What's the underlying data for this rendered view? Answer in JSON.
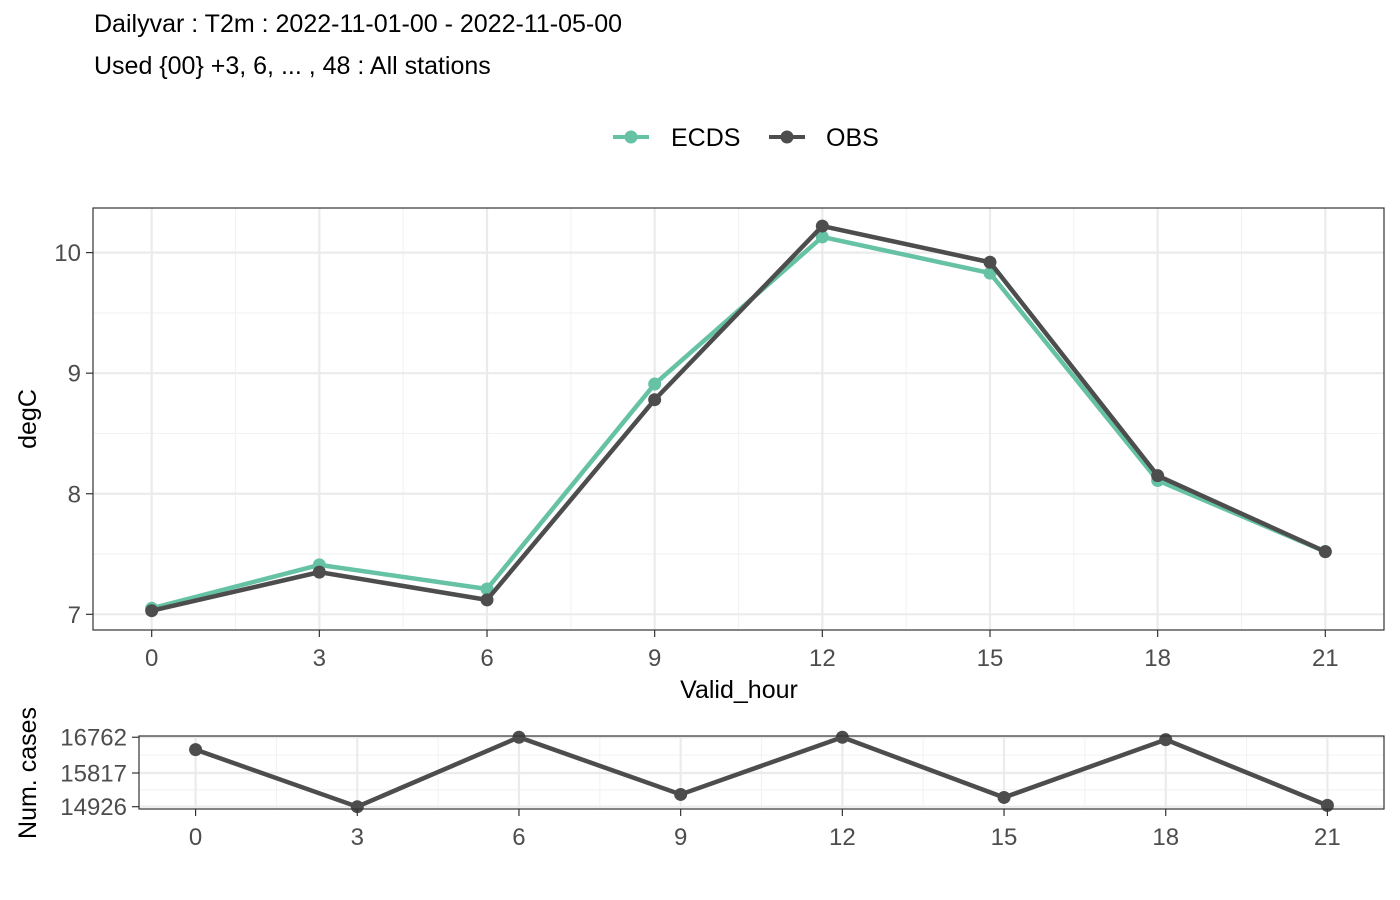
{
  "title": "Dailyvar : T2m : 2022-11-01-00 - 2022-11-05-00",
  "subtitle": "Used {00} +3, 6, ... , 48 : All stations",
  "colors": {
    "ecds": "#66c2a5",
    "obs": "#4d4d4d"
  },
  "chart_data": [
    {
      "type": "line",
      "xlabel": "Valid_hour",
      "ylabel": "degC",
      "x": [
        0,
        3,
        6,
        9,
        12,
        15,
        18,
        21
      ],
      "xticks": [
        "0",
        "3",
        "6",
        "9",
        "12",
        "15",
        "18",
        "21"
      ],
      "yticks": [
        "7",
        "8",
        "9",
        "10"
      ],
      "xlim": [
        -1.05,
        22.05
      ],
      "ylim": [
        6.87,
        10.37
      ],
      "grid": true,
      "legend_position": "top",
      "series": [
        {
          "name": "ECDS",
          "color": "#66c2a5",
          "values": [
            7.05,
            7.41,
            7.21,
            8.91,
            10.13,
            9.83,
            8.11,
            7.52
          ]
        },
        {
          "name": "OBS",
          "color": "#4d4d4d",
          "values": [
            7.03,
            7.35,
            7.12,
            8.78,
            10.22,
            9.92,
            8.15,
            7.52
          ]
        }
      ]
    },
    {
      "type": "line",
      "xlabel": "",
      "ylabel": "Num. cases",
      "x": [
        0,
        3,
        6,
        9,
        12,
        15,
        18,
        21
      ],
      "xticks": [
        "0",
        "3",
        "6",
        "9",
        "12",
        "15",
        "18",
        "21"
      ],
      "yticks": [
        "14926",
        "15817",
        "16762"
      ],
      "xlim": [
        -1.05,
        22.05
      ],
      "ylim": [
        14865,
        16795
      ],
      "grid": true,
      "series": [
        {
          "name": "",
          "color": "#4d4d4d",
          "values": [
            16435,
            14926,
            16762,
            15250,
            16762,
            15170,
            16700,
            14960
          ]
        }
      ]
    }
  ]
}
